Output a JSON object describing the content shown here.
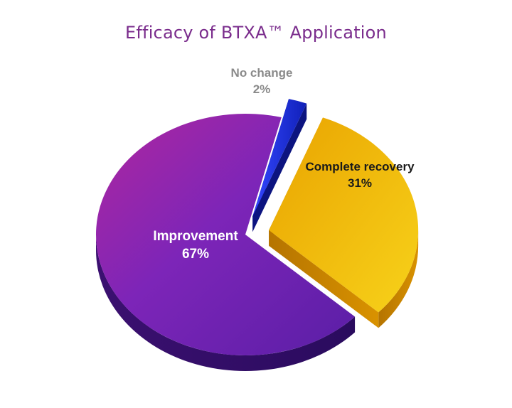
{
  "chart_data": {
    "type": "pie",
    "title": "Efficacy of BTXA™ Application",
    "slices": [
      {
        "label": "No change",
        "value": 2,
        "value_label": "2%",
        "color": "#1f2fd6",
        "exploded": true
      },
      {
        "label": "Complete recovery",
        "value": 31,
        "value_label": "31%",
        "color": "#f2b705",
        "exploded": true
      },
      {
        "label": "Improvement",
        "value": 67,
        "value_label": "67%",
        "color": "#7b22b8",
        "exploded": false
      }
    ],
    "legend": "none",
    "style": "3d-tilted"
  }
}
